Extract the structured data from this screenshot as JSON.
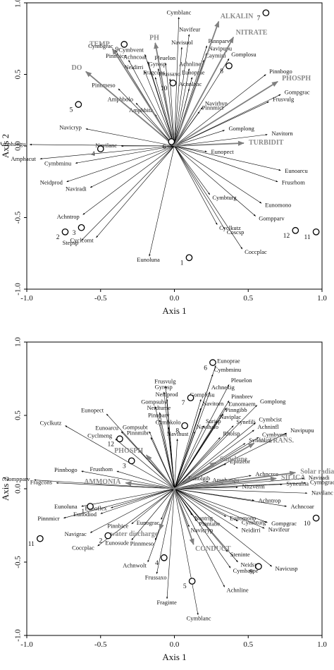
{
  "colors": {
    "species_arrow": "#000000",
    "env_arrow": "#808080",
    "site_marker": "#000000"
  },
  "chart_data": [
    {
      "type": "biplot",
      "xlabel": "Axis 1",
      "ylabel": "Axis 2",
      "xlim": [
        -1.0,
        1.0
      ],
      "ylim": [
        -1.0,
        1.0
      ],
      "xticks": [
        "-1.0",
        "-0.5",
        "0.0",
        "0.5",
        "1.0"
      ],
      "yticks": [
        "1.0",
        "0.5",
        "0.0",
        "-0.5",
        "-1.0"
      ],
      "grid": false,
      "env_arrows": [
        {
          "label": "ALKALIN",
          "x": 0.3,
          "y": 0.87
        },
        {
          "label": "NITRATE",
          "x": 0.4,
          "y": 0.76
        },
        {
          "label": "PH",
          "x": -0.13,
          "y": 0.72
        },
        {
          "label": "TEMP",
          "x": -0.42,
          "y": 0.68
        },
        {
          "label": "DO",
          "x": -0.6,
          "y": 0.52
        },
        {
          "label": "PHOSPH",
          "x": 0.7,
          "y": 0.45
        },
        {
          "label": "TURBIDIT",
          "x": 0.47,
          "y": 0.02
        }
      ],
      "species_arrows": [
        {
          "label": "Cymblanc",
          "x": 0.03,
          "y": 0.9
        },
        {
          "label": "Navifeur",
          "x": 0.1,
          "y": 0.78
        },
        {
          "label": "Navisuol",
          "x": 0.05,
          "y": 0.69
        },
        {
          "label": "Pinnparv",
          "x": 0.22,
          "y": 0.7
        },
        {
          "label": "Navipupu",
          "x": 0.22,
          "y": 0.65
        },
        {
          "label": "Gomplosu",
          "x": 0.37,
          "y": 0.61
        },
        {
          "label": "Caymini",
          "x": 0.2,
          "y": 0.6
        },
        {
          "label": "Cymbgrac",
          "x": -0.4,
          "y": 0.67
        },
        {
          "label": "Cymbvent",
          "x": -0.2,
          "y": 0.64
        },
        {
          "label": "Pinnbice",
          "x": -0.31,
          "y": 0.6
        },
        {
          "label": "Achncoar",
          "x": -0.18,
          "y": 0.59
        },
        {
          "label": "Pleuelon",
          "x": -0.06,
          "y": 0.58
        },
        {
          "label": "Gyrosp",
          "x": -0.11,
          "y": 0.54
        },
        {
          "label": "Achnline",
          "x": 0.1,
          "y": 0.54
        },
        {
          "label": "Eunoprae",
          "x": 0.12,
          "y": 0.48
        },
        {
          "label": "Fragcons",
          "x": -0.13,
          "y": 0.48
        },
        {
          "label": "Frussaxo",
          "x": -0.03,
          "y": 0.47
        },
        {
          "label": "Neidirri",
          "x": -0.2,
          "y": 0.52
        },
        {
          "label": "Achnlanc",
          "x": 0.1,
          "y": 0.4
        },
        {
          "label": "Pinnbogo",
          "x": 0.62,
          "y": 0.5
        },
        {
          "label": "Gompgrac",
          "x": 0.72,
          "y": 0.36
        },
        {
          "label": "Frusvulg",
          "x": 0.64,
          "y": 0.31
        },
        {
          "label": "Navirhyn",
          "x": 0.19,
          "y": 0.27
        },
        {
          "label": "Pinnmicr",
          "x": 0.17,
          "y": 0.24
        },
        {
          "label": "Pinnmeso",
          "x": -0.38,
          "y": 0.4
        },
        {
          "label": "Amphbolo",
          "x": -0.26,
          "y": 0.3
        },
        {
          "label": "Amphbita",
          "x": -0.13,
          "y": 0.22
        },
        {
          "label": "Gomplong",
          "x": 0.34,
          "y": 0.11
        },
        {
          "label": "Navitorn",
          "x": 0.63,
          "y": 0.08
        },
        {
          "label": "Eunopect",
          "x": 0.22,
          "y": -0.04
        },
        {
          "label": "Navicryp",
          "x": -0.6,
          "y": 0.12
        },
        {
          "label": "Amphangu",
          "x": -0.98,
          "y": 0.01
        },
        {
          "label": "Navilanc",
          "x": -0.36,
          "y": 0.0
        },
        {
          "label": "Amphacut",
          "x": -0.91,
          "y": -0.09
        },
        {
          "label": "Cymbminu",
          "x": -0.67,
          "y": -0.12
        },
        {
          "label": "Neidprod",
          "x": -0.73,
          "y": -0.25
        },
        {
          "label": "Naviradi",
          "x": -0.57,
          "y": -0.29
        },
        {
          "label": "Eunoarcu",
          "x": 0.72,
          "y": -0.17
        },
        {
          "label": "Frusrhom",
          "x": 0.7,
          "y": -0.25
        },
        {
          "label": "Cymbturg",
          "x": 0.24,
          "y": -0.34
        },
        {
          "label": "Eunomono",
          "x": 0.59,
          "y": -0.4
        },
        {
          "label": "Gompparv",
          "x": 0.55,
          "y": -0.49
        },
        {
          "label": "Achntrop",
          "x": -0.62,
          "y": -0.48
        },
        {
          "label": "Cyclkutz",
          "x": 0.29,
          "y": -0.55
        },
        {
          "label": "Coscsp",
          "x": 0.34,
          "y": -0.58
        },
        {
          "label": "Stepsp",
          "x": -0.63,
          "y": -0.66
        },
        {
          "label": "Cyclcomt",
          "x": -0.53,
          "y": -0.64
        },
        {
          "label": "Coccplac",
          "x": 0.46,
          "y": -0.72
        },
        {
          "label": "Eunoluna",
          "x": -0.17,
          "y": -0.77
        }
      ],
      "sites": [
        {
          "label": "1",
          "x": 0.1,
          "y": -0.78
        },
        {
          "label": "2",
          "x": -0.74,
          "y": -0.6
        },
        {
          "label": "3",
          "x": -0.63,
          "y": -0.57
        },
        {
          "label": "4",
          "x": -0.5,
          "y": -0.02
        },
        {
          "label": "5",
          "x": -0.65,
          "y": 0.29
        },
        {
          "label": "6",
          "x": -0.02,
          "y": 0.03
        },
        {
          "label": "7",
          "x": 0.62,
          "y": 0.93
        },
        {
          "label": "8",
          "x": 0.37,
          "y": 0.56
        },
        {
          "label": "9",
          "x": -0.34,
          "y": 0.71
        },
        {
          "label": "10",
          "x": -0.01,
          "y": 0.44
        },
        {
          "label": "11",
          "x": 0.96,
          "y": -0.6
        },
        {
          "label": "12",
          "x": 0.82,
          "y": -0.59
        }
      ]
    },
    {
      "type": "biplot",
      "xlabel": "Axis 1",
      "ylabel": "Axis 2",
      "xlim": [
        -1.0,
        1.0
      ],
      "ylim": [
        -1.0,
        1.0
      ],
      "xticks": [
        "-1.0",
        "-0.5",
        "0.0",
        "0.5",
        "1.0"
      ],
      "yticks": [
        "1.0",
        "0.5",
        "0.0",
        "-0.5",
        "-1.0"
      ],
      "grid": false,
      "env_arrows": [
        {
          "label": "Sunshine",
          "x": 0.28,
          "y": 0.18
        },
        {
          "label": "W. TRANS.",
          "x": 0.54,
          "y": 0.31
        },
        {
          "label": "SILICA",
          "x": 0.69,
          "y": 0.07
        },
        {
          "label": "Solar radiation",
          "x": 0.82,
          "y": 0.11
        },
        {
          "label": "PHOSPH",
          "x": -0.19,
          "y": 0.23
        },
        {
          "label": "AMMONIA",
          "x": -0.33,
          "y": 0.04
        },
        {
          "label": "water discharge",
          "x": -0.1,
          "y": -0.28
        },
        {
          "label": "CONDUCT",
          "x": 0.13,
          "y": -0.38
        }
      ],
      "species_arrows": [
        {
          "label": "Eunoprae",
          "x": 0.28,
          "y": 0.84
        },
        {
          "label": "Cymbminu",
          "x": 0.26,
          "y": 0.78
        },
        {
          "label": "Pleuelon",
          "x": 0.37,
          "y": 0.71
        },
        {
          "label": "Achnexig",
          "x": 0.24,
          "y": 0.66
        },
        {
          "label": "Frusvulg",
          "x": -0.06,
          "y": 0.7
        },
        {
          "label": "Gyrosp",
          "x": -0.07,
          "y": 0.66
        },
        {
          "label": "Neidprod",
          "x": -0.05,
          "y": 0.61
        },
        {
          "label": "Gomplosu",
          "x": 0.18,
          "y": 0.61
        },
        {
          "label": "Pinnbrev",
          "x": 0.37,
          "y": 0.6
        },
        {
          "label": "Gomplong",
          "x": 0.56,
          "y": 0.57
        },
        {
          "label": "Navitorn",
          "x": 0.18,
          "y": 0.55
        },
        {
          "label": "Eunomaem",
          "x": 0.35,
          "y": 0.55
        },
        {
          "label": "Gompsubv",
          "x": -0.13,
          "y": 0.56
        },
        {
          "label": "Neidtume",
          "x": -0.1,
          "y": 0.52
        },
        {
          "label": "Pinngibb",
          "x": 0.33,
          "y": 0.51
        },
        {
          "label": "Pinnparv",
          "x": -0.1,
          "y": 0.47
        },
        {
          "label": "Naviplac",
          "x": 0.29,
          "y": 0.46
        },
        {
          "label": "Cymbcist",
          "x": 0.55,
          "y": 0.45
        },
        {
          "label": "Eunopect",
          "x": -0.46,
          "y": 0.51
        },
        {
          "label": "Cymbkolo",
          "x": -0.04,
          "y": 0.42
        },
        {
          "label": "Surisp",
          "x": 0.2,
          "y": 0.43
        },
        {
          "label": "Synefili",
          "x": 0.4,
          "y": 0.43
        },
        {
          "label": "Gompsubt",
          "x": -0.17,
          "y": 0.39
        },
        {
          "label": "Navihalo",
          "x": 0.14,
          "y": 0.39
        },
        {
          "label": "Achninfl",
          "x": 0.54,
          "y": 0.4
        },
        {
          "label": "Pinnmibr",
          "x": -0.16,
          "y": 0.35
        },
        {
          "label": "Navihust",
          "x": 0.02,
          "y": 0.34
        },
        {
          "label": "Rholsp",
          "x": 0.31,
          "y": 0.35
        },
        {
          "label": "Cymbvent",
          "x": 0.57,
          "y": 0.35
        },
        {
          "label": "Navipupu",
          "x": 0.76,
          "y": 0.38
        },
        {
          "label": "Eunoarcu",
          "x": -0.36,
          "y": 0.39
        },
        {
          "label": "Syneulim",
          "x": 0.48,
          "y": 0.31
        },
        {
          "label": "Cyclkutz",
          "x": -0.74,
          "y": 0.43
        },
        {
          "label": "Cyclmeng",
          "x": -0.4,
          "y": 0.34
        },
        {
          "label": "Epitzebr",
          "x": 0.35,
          "y": 0.17
        },
        {
          "label": "Pinnbogo",
          "x": -0.63,
          "y": 0.12
        },
        {
          "label": "Frusthom",
          "x": -0.39,
          "y": 0.12
        },
        {
          "label": "Gompparv",
          "x": -0.95,
          "y": 0.06
        },
        {
          "label": "Fragcons",
          "x": -0.8,
          "y": 0.04
        },
        {
          "label": "Achncrce",
          "x": 0.52,
          "y": 0.09
        },
        {
          "label": "Naviradi",
          "x": 0.88,
          "y": 0.07
        },
        {
          "label": "Amphangu",
          "x": 0.23,
          "y": 0.05
        },
        {
          "label": "Eunolgib",
          "x": 0.07,
          "y": 0.05
        },
        {
          "label": "Syneulna",
          "x": 0.73,
          "y": 0.03
        },
        {
          "label": "Cymbgrac",
          "x": 0.89,
          "y": 0.04
        },
        {
          "label": "Nitzverm",
          "x": 0.43,
          "y": 0.01
        },
        {
          "label": "Navilanc",
          "x": 0.9,
          "y": -0.03
        },
        {
          "label": "Eunoluna",
          "x": -0.63,
          "y": -0.12
        },
        {
          "label": "Eunoflex",
          "x": -0.43,
          "y": -0.13
        },
        {
          "label": "Eunodiod",
          "x": -0.5,
          "y": -0.17
        },
        {
          "label": "Pinnmicr",
          "x": -0.75,
          "y": -0.2
        },
        {
          "label": "Achntrop",
          "x": 0.54,
          "y": -0.08
        },
        {
          "label": "Achncoar",
          "x": 0.76,
          "y": -0.12
        },
        {
          "label": "Pinnbice",
          "x": -0.29,
          "y": -0.24
        },
        {
          "label": "Eunograc",
          "x": -0.09,
          "y": -0.21
        },
        {
          "label": "Navigrac",
          "x": -0.57,
          "y": -0.3
        },
        {
          "label": "Nantrig",
          "x": 0.12,
          "y": -0.18
        },
        {
          "label": "Pinntabe",
          "x": 0.15,
          "y": -0.22
        },
        {
          "label": "Eunomono",
          "x": 0.35,
          "y": -0.19
        },
        {
          "label": "Cymbturg",
          "x": 0.43,
          "y": -0.22
        },
        {
          "label": "Gompgrac",
          "x": 0.63,
          "y": -0.23
        },
        {
          "label": "Neidirri",
          "x": 0.43,
          "y": -0.27
        },
        {
          "label": "Navifeur",
          "x": 0.61,
          "y": -0.27
        },
        {
          "label": "Navicryp",
          "x": 0.1,
          "y": -0.26
        },
        {
          "label": "Coccplac",
          "x": -0.52,
          "y": -0.39
        },
        {
          "label": "Eunosude",
          "x": -0.29,
          "y": -0.35
        },
        {
          "label": "Pinnmeso",
          "x": -0.13,
          "y": -0.35
        },
        {
          "label": "Achnwolt",
          "x": -0.18,
          "y": -0.5
        },
        {
          "label": "Steninte",
          "x": 0.36,
          "y": -0.43
        },
        {
          "label": "Neidsp",
          "x": 0.43,
          "y": -0.5
        },
        {
          "label": "Cymbaspe",
          "x": 0.38,
          "y": -0.54
        },
        {
          "label": "Navicusp",
          "x": 0.66,
          "y": -0.53
        },
        {
          "label": "Frussaxo",
          "x": -0.12,
          "y": -0.58
        },
        {
          "label": "Achnline",
          "x": 0.34,
          "y": -0.67
        },
        {
          "label": "Fraginte",
          "x": -0.05,
          "y": -0.75
        },
        {
          "label": "Cymblanc",
          "x": 0.16,
          "y": -0.86
        }
      ],
      "sites": [
        {
          "label": "1",
          "x": -0.57,
          "y": -0.12
        },
        {
          "label": "2",
          "x": -0.45,
          "y": -0.32
        },
        {
          "label": "3",
          "x": -0.29,
          "y": 0.19
        },
        {
          "label": "4",
          "x": -0.07,
          "y": -0.47
        },
        {
          "label": "5",
          "x": 0.12,
          "y": -0.63
        },
        {
          "label": "6",
          "x": 0.26,
          "y": 0.86
        },
        {
          "label": "7",
          "x": 0.11,
          "y": 0.62
        },
        {
          "label": "8",
          "x": 0.07,
          "y": 0.43
        },
        {
          "label": "9",
          "x": 0.57,
          "y": -0.53
        },
        {
          "label": "10",
          "x": 0.96,
          "y": -0.2
        },
        {
          "label": "11",
          "x": -0.91,
          "y": -0.34
        },
        {
          "label": "12",
          "x": -0.37,
          "y": 0.34
        }
      ]
    }
  ]
}
